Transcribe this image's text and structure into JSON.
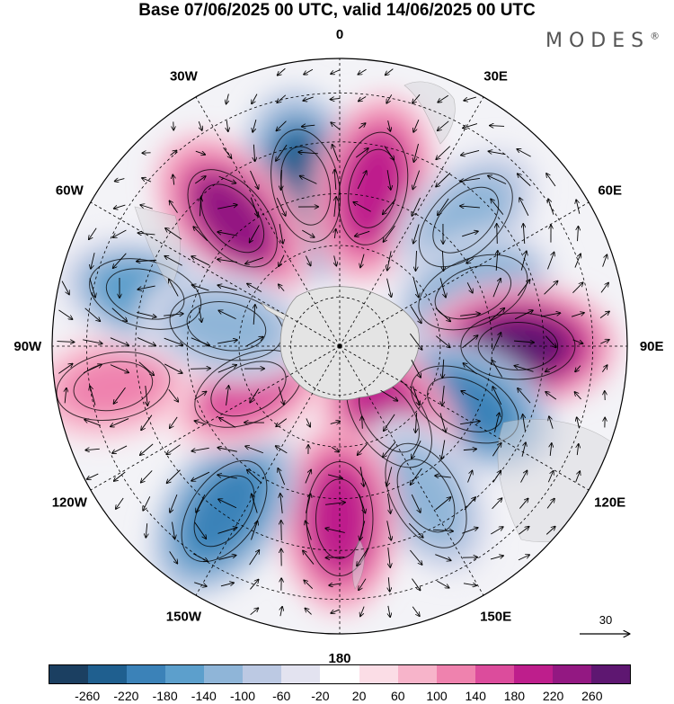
{
  "title": "Base 07/06/2025 00 UTC, valid 14/06/2025 00 UTC",
  "brand": "MODES",
  "brand_mark": "®",
  "longitude_labels": [
    "0",
    "30E",
    "60E",
    "90E",
    "120E",
    "150E",
    "180",
    "150W",
    "120W",
    "90W",
    "60W",
    "30W"
  ],
  "vector_reference": {
    "value": "30"
  },
  "colorbar": {
    "ticks": [
      "-260",
      "-220",
      "-180",
      "-140",
      "-100",
      "-60",
      "-20",
      "20",
      "60",
      "100",
      "140",
      "180",
      "220",
      "260"
    ],
    "colors": [
      "#1b3f61",
      "#1f5f8f",
      "#3b82b8",
      "#5c9fcc",
      "#8fb5d8",
      "#bcc9e3",
      "#e3e3f0",
      "#ffffff",
      "#fbdde6",
      "#f7b4ca",
      "#ef82ae",
      "#dc4c9c",
      "#be1e8c",
      "#931882",
      "#5e1771"
    ]
  },
  "anomaly_centers": [
    {
      "lon": -12,
      "r": 0.57,
      "value": -240
    },
    {
      "lon": 12,
      "r": 0.56,
      "value": 200
    },
    {
      "lon": -40,
      "r": 0.58,
      "value": 220
    },
    {
      "lon": 45,
      "r": 0.62,
      "value": -120
    },
    {
      "lon": 68,
      "r": 0.5,
      "value": -140
    },
    {
      "lon": 90,
      "r": 0.62,
      "value": 260
    },
    {
      "lon": 115,
      "r": 0.48,
      "value": -200
    },
    {
      "lon": 145,
      "r": 0.3,
      "value": 200
    },
    {
      "lon": 150,
      "r": 0.6,
      "value": -120
    },
    {
      "lon": 180,
      "r": 0.6,
      "value": 200
    },
    {
      "lon": -145,
      "r": 0.7,
      "value": -200
    },
    {
      "lon": -115,
      "r": 0.35,
      "value": 160
    },
    {
      "lon": -100,
      "r": 0.8,
      "value": 120
    },
    {
      "lon": -75,
      "r": 0.7,
      "value": -160
    },
    {
      "lon": -80,
      "r": 0.4,
      "value": -120
    }
  ]
}
